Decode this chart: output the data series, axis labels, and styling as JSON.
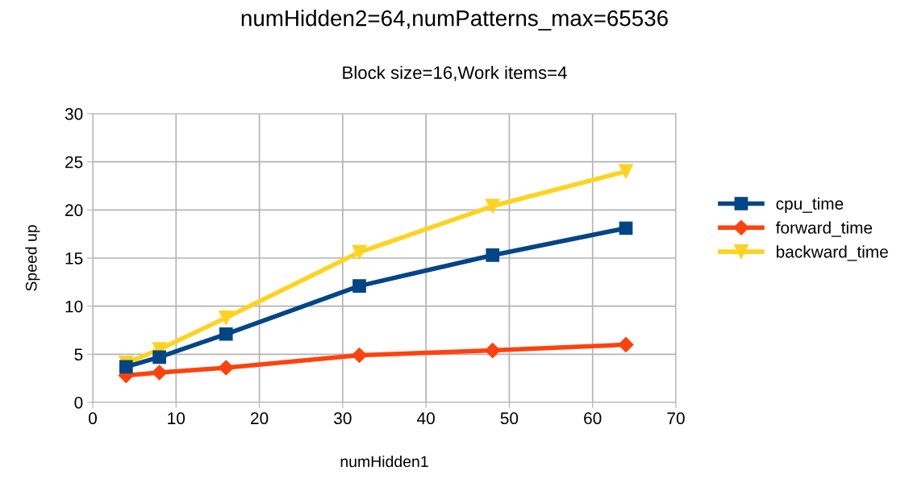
{
  "chart_data": {
    "type": "line",
    "title": "numHidden2=64,numPatterns_max=65536",
    "subtitle": "Block size=16,Work items=4",
    "xlabel": "numHidden1",
    "ylabel": "Speed up",
    "x": [
      4,
      8,
      16,
      32,
      48,
      64
    ],
    "series": [
      {
        "name": "cpu_time",
        "color": "#004586",
        "marker": "square",
        "values": [
          3.7,
          4.7,
          7.1,
          12.1,
          15.3,
          18.1
        ]
      },
      {
        "name": "forward_time",
        "color": "#ff420e",
        "marker": "diamond",
        "values": [
          2.8,
          3.1,
          3.6,
          4.9,
          5.4,
          6.0
        ]
      },
      {
        "name": "backward_time",
        "color": "#ffd320",
        "marker": "triangle",
        "values": [
          4.1,
          5.5,
          8.8,
          15.6,
          20.4,
          24.0
        ]
      }
    ],
    "xlim": [
      0,
      70
    ],
    "xticks": [
      0,
      10,
      20,
      30,
      40,
      50,
      60,
      70
    ],
    "ylim": [
      0,
      30
    ],
    "yticks": [
      0,
      5,
      10,
      15,
      20,
      25,
      30
    ],
    "grid": true,
    "legend": "right"
  }
}
